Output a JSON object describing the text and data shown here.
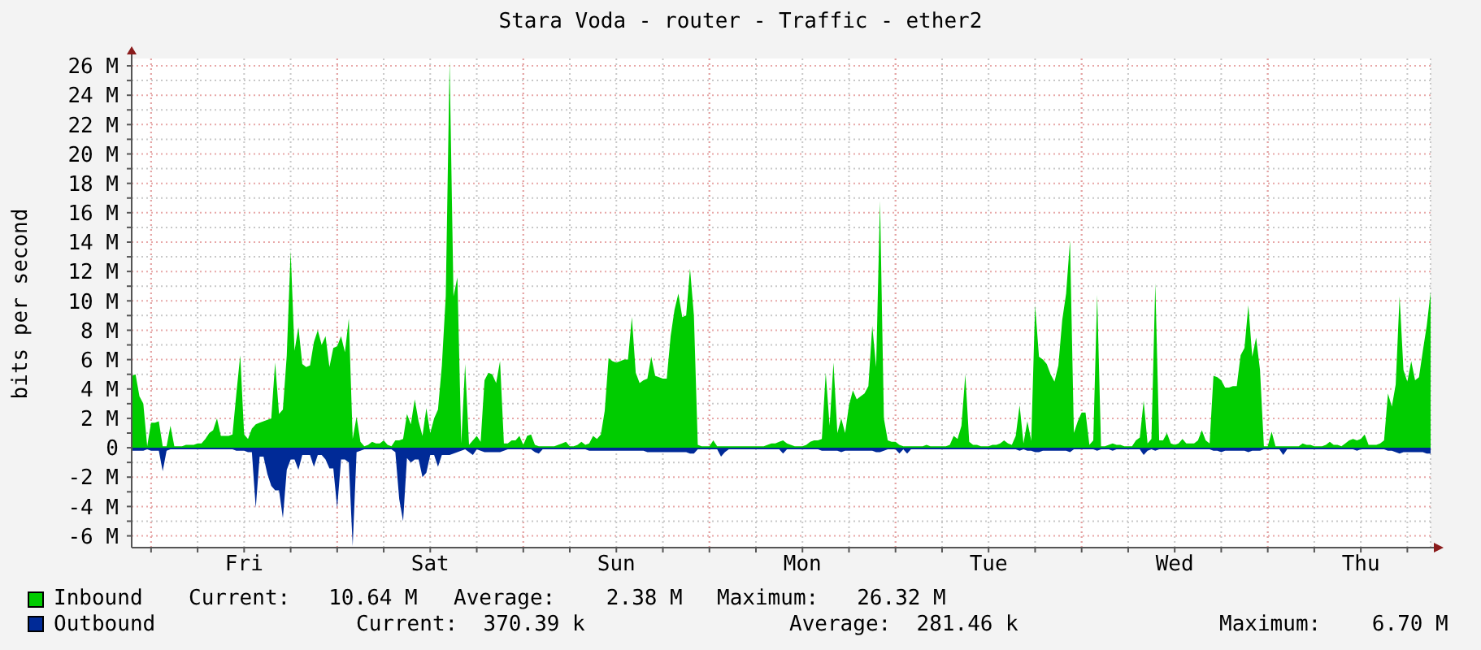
{
  "chart_data": {
    "type": "area",
    "title": "Stara Voda - router - Traffic - ether2",
    "ylabel": "bits per second",
    "categories": [
      null,
      null,
      null,
      null,
      null,
      null,
      null,
      null,
      null,
      null,
      null,
      null,
      null,
      null,
      null,
      null,
      null,
      null,
      null,
      null,
      null,
      null,
      null,
      null,
      null,
      null,
      null,
      null,
      null,
      "Fri",
      null,
      null,
      null,
      null,
      null,
      null,
      null,
      null,
      null,
      null,
      null,
      null,
      null,
      null,
      null,
      null,
      null,
      null,
      null,
      null,
      null,
      null,
      null,
      null,
      null,
      null,
      null,
      null,
      null,
      null,
      null,
      null,
      null,
      null,
      null,
      null,
      null,
      null,
      null,
      null,
      null,
      null,
      null,
      null,
      null,
      null,
      null,
      "Sat",
      null,
      null,
      null,
      null,
      null,
      null,
      null,
      null,
      null,
      null,
      null,
      null,
      null,
      null,
      null,
      null,
      null,
      null,
      null,
      null,
      null,
      null,
      null,
      null,
      null,
      null,
      null,
      null,
      null,
      null,
      null,
      null,
      null,
      null,
      null,
      null,
      null,
      null,
      null,
      null,
      null,
      null,
      null,
      null,
      null,
      null,
      null,
      "Sun",
      null,
      null,
      null,
      null,
      null,
      null,
      null,
      null,
      null,
      null,
      null,
      null,
      null,
      null,
      null,
      null,
      null,
      null,
      null,
      null,
      null,
      null,
      null,
      null,
      null,
      null,
      null,
      null,
      null,
      null,
      null,
      null,
      null,
      null,
      null,
      null,
      null,
      null,
      null,
      null,
      null,
      null,
      null,
      null,
      null,
      null,
      null,
      "Mon",
      null,
      null,
      null,
      null,
      null,
      null,
      null,
      null,
      null,
      null,
      null,
      null,
      null,
      null,
      null,
      null,
      null,
      null,
      null,
      null,
      null,
      null,
      null,
      null,
      null,
      null,
      null,
      null,
      null,
      null,
      null,
      null,
      null,
      null,
      null,
      null,
      null,
      null,
      null,
      null,
      null,
      null,
      null,
      null,
      null,
      null,
      null,
      "Tue",
      null,
      null,
      null,
      null,
      null,
      null,
      null,
      null,
      null,
      null,
      null,
      null,
      null,
      null,
      null,
      null,
      null,
      null,
      null,
      null,
      null,
      null,
      null,
      null,
      null,
      null,
      null,
      null,
      null,
      null,
      null,
      null,
      null,
      null,
      null,
      null,
      null,
      null,
      null,
      null,
      null,
      null,
      null,
      null,
      null,
      null,
      null,
      "Wed",
      null,
      null,
      null,
      null,
      null,
      null,
      null,
      null,
      null,
      null,
      null,
      null,
      null,
      null,
      null,
      null,
      null,
      null,
      null,
      null,
      null,
      null,
      null,
      null,
      null,
      null,
      null,
      null,
      null,
      null,
      null,
      null,
      null,
      null,
      null,
      null,
      null,
      null,
      null,
      null,
      null,
      null,
      null,
      null,
      null,
      null,
      null,
      "Thu",
      null,
      null,
      null,
      null,
      null,
      null,
      null,
      null,
      null,
      null,
      null,
      null,
      null,
      null,
      null,
      null,
      null,
      null
    ],
    "series": [
      {
        "name": "Inbound",
        "color": "#00cc00",
        "values": [
          4.9,
          5.0,
          3.5,
          3.0,
          0.1,
          1.7,
          1.7,
          1.8,
          0.1,
          0.1,
          1.5,
          0.1,
          0.1,
          0.1,
          0.2,
          0.2,
          0.2,
          0.3,
          0.3,
          0.6,
          1.0,
          1.2,
          2.0,
          0.8,
          0.8,
          0.8,
          0.9,
          3.7,
          6.3,
          0.9,
          0.6,
          1.3,
          1.6,
          1.7,
          1.8,
          1.9,
          2.0,
          5.8,
          2.3,
          2.6,
          6.3,
          13.4,
          6.6,
          8.2,
          5.7,
          5.5,
          5.6,
          7.2,
          8.0,
          7.0,
          7.6,
          5.5,
          6.8,
          6.9,
          7.6,
          6.5,
          8.8,
          0.6,
          2.1,
          0.4,
          0.1,
          0.2,
          0.4,
          0.3,
          0.3,
          0.5,
          0.2,
          0.1,
          0.5,
          0.5,
          0.6,
          2.3,
          1.6,
          3.3,
          1.8,
          0.8,
          2.7,
          1.0,
          2.0,
          2.6,
          5.6,
          10.3,
          26.3,
          10.3,
          11.6,
          0.3,
          5.7,
          0.2,
          0.5,
          0.8,
          0.4,
          4.6,
          5.1,
          5.0,
          4.4,
          5.9,
          0.3,
          0.3,
          0.5,
          0.5,
          0.8,
          0.2,
          0.8,
          0.9,
          0.2,
          0.1,
          0.1,
          0.1,
          0.1,
          0.1,
          0.2,
          0.3,
          0.4,
          0.1,
          0.1,
          0.2,
          0.4,
          0.2,
          0.3,
          0.8,
          0.6,
          0.9,
          2.5,
          6.1,
          5.9,
          5.8,
          5.9,
          6.0,
          6.0,
          8.9,
          5.1,
          4.4,
          4.6,
          4.7,
          6.2,
          4.9,
          4.8,
          4.7,
          4.7,
          7.6,
          9.4,
          10.5,
          8.9,
          9.0,
          12.2,
          9.0,
          0.2,
          0.1,
          0.1,
          0.1,
          0.5,
          0.1,
          0.1,
          0.1,
          0.1,
          0.1,
          0.1,
          0.1,
          0.1,
          0.1,
          0.1,
          0.1,
          0.1,
          0.1,
          0.2,
          0.3,
          0.3,
          0.4,
          0.5,
          0.3,
          0.2,
          0.1,
          0.1,
          0.1,
          0.2,
          0.4,
          0.5,
          0.5,
          0.6,
          5.1,
          1.5,
          5.8,
          1.0,
          2.0,
          1.0,
          2.9,
          3.9,
          3.3,
          3.5,
          3.7,
          4.2,
          8.3,
          5.5,
          16.8,
          2.0,
          0.5,
          0.4,
          0.4,
          0.2,
          0.1,
          0.1,
          0.1,
          0.1,
          0.1,
          0.1,
          0.2,
          0.1,
          0.1,
          0.1,
          0.1,
          0.1,
          0.2,
          0.8,
          0.6,
          1.5,
          5.0,
          0.4,
          0.2,
          0.2,
          0.1,
          0.1,
          0.1,
          0.2,
          0.2,
          0.3,
          0.5,
          0.3,
          0.2,
          0.8,
          2.9,
          0.3,
          1.8,
          0.5,
          9.7,
          6.2,
          6.0,
          5.7,
          5.0,
          4.5,
          5.6,
          8.7,
          10.5,
          14.1,
          1.0,
          1.8,
          2.4,
          2.4,
          0.2,
          0.5,
          10.4,
          0.1,
          0.1,
          0.2,
          0.3,
          0.2,
          0.2,
          0.1,
          0.1,
          0.1,
          0.5,
          0.7,
          3.2,
          0.3,
          0.6,
          11.2,
          0.5,
          0.5,
          1.0,
          0.3,
          0.2,
          0.3,
          0.6,
          0.3,
          0.3,
          0.3,
          0.5,
          1.2,
          0.5,
          0.3,
          4.9,
          4.8,
          4.6,
          4.1,
          4.1,
          4.2,
          4.2,
          6.3,
          6.8,
          9.7,
          6.2,
          7.5,
          5.3,
          0.1,
          0.1,
          1.1,
          0.1,
          0.1,
          0.1,
          0.1,
          0.1,
          0.1,
          0.1,
          0.3,
          0.2,
          0.2,
          0.1,
          0.1,
          0.1,
          0.2,
          0.4,
          0.2,
          0.2,
          0.1,
          0.3,
          0.5,
          0.6,
          0.5,
          0.6,
          0.9,
          0.2,
          0.2,
          0.2,
          0.3,
          0.5,
          3.7,
          2.8,
          4.3,
          10.3,
          5.3,
          4.5,
          5.9,
          4.6,
          4.8,
          6.6,
          8.3,
          10.6
        ]
      },
      {
        "name": "Outbound",
        "color": "#002a97",
        "values": [
          -0.2,
          -0.2,
          -0.2,
          -0.2,
          -0.1,
          -0.2,
          -0.2,
          -0.2,
          -1.6,
          -0.2,
          -0.1,
          -0.1,
          -0.1,
          -0.1,
          -0.1,
          -0.1,
          -0.1,
          -0.1,
          -0.1,
          -0.1,
          -0.1,
          -0.1,
          -0.1,
          -0.1,
          -0.1,
          -0.1,
          -0.1,
          -0.2,
          -0.2,
          -0.2,
          -0.3,
          -0.3,
          -4.1,
          -0.6,
          -0.6,
          -1.8,
          -2.6,
          -2.9,
          -2.9,
          -4.8,
          -1.5,
          -0.8,
          -0.8,
          -1.5,
          -0.5,
          -0.5,
          -0.5,
          -1.3,
          -0.5,
          -0.5,
          -0.8,
          -1.4,
          -1.4,
          -4.1,
          -0.8,
          -0.8,
          -1.0,
          -6.7,
          -0.3,
          -0.2,
          -0.1,
          -0.1,
          -0.1,
          -0.1,
          -0.1,
          -0.1,
          -0.1,
          -0.1,
          -0.3,
          -3.5,
          -5.0,
          -0.7,
          -1.0,
          -0.8,
          -0.8,
          -2.0,
          -1.7,
          -0.5,
          -0.5,
          -1.3,
          -0.5,
          -0.5,
          -0.5,
          -0.4,
          -0.3,
          -0.2,
          -0.1,
          -0.3,
          -0.5,
          -0.1,
          -0.2,
          -0.3,
          -0.3,
          -0.3,
          -0.3,
          -0.3,
          -0.2,
          -0.1,
          -0.1,
          -0.1,
          -0.1,
          -0.1,
          -0.1,
          -0.1,
          -0.3,
          -0.4,
          -0.1,
          -0.1,
          -0.1,
          -0.1,
          -0.1,
          -0.1,
          -0.1,
          -0.1,
          -0.1,
          -0.1,
          -0.1,
          -0.1,
          -0.2,
          -0.2,
          -0.2,
          -0.2,
          -0.2,
          -0.2,
          -0.2,
          -0.2,
          -0.2,
          -0.2,
          -0.2,
          -0.2,
          -0.2,
          -0.2,
          -0.2,
          -0.3,
          -0.3,
          -0.3,
          -0.3,
          -0.3,
          -0.3,
          -0.3,
          -0.3,
          -0.3,
          -0.3,
          -0.3,
          -0.4,
          -0.4,
          -0.1,
          -0.1,
          -0.1,
          -0.1,
          -0.1,
          -0.1,
          -0.6,
          -0.3,
          -0.1,
          -0.1,
          -0.1,
          -0.1,
          -0.1,
          -0.1,
          -0.1,
          -0.1,
          -0.1,
          -0.1,
          -0.1,
          -0.1,
          -0.1,
          -0.1,
          -0.4,
          -0.1,
          -0.1,
          -0.1,
          -0.1,
          -0.1,
          -0.1,
          -0.1,
          -0.1,
          -0.1,
          -0.2,
          -0.2,
          -0.2,
          -0.2,
          -0.2,
          -0.3,
          -0.2,
          -0.2,
          -0.2,
          -0.2,
          -0.2,
          -0.2,
          -0.2,
          -0.2,
          -0.3,
          -0.3,
          -0.2,
          -0.1,
          -0.1,
          -0.1,
          -0.4,
          -0.1,
          -0.4,
          -0.1,
          -0.1,
          -0.1,
          -0.1,
          -0.1,
          -0.1,
          -0.1,
          -0.1,
          -0.1,
          -0.1,
          -0.1,
          -0.1,
          -0.1,
          -0.1,
          -0.1,
          -0.1,
          -0.1,
          -0.1,
          -0.1,
          -0.1,
          -0.1,
          -0.1,
          -0.1,
          -0.1,
          -0.1,
          -0.1,
          -0.1,
          -0.1,
          -0.2,
          -0.1,
          -0.2,
          -0.2,
          -0.3,
          -0.3,
          -0.2,
          -0.2,
          -0.2,
          -0.2,
          -0.2,
          -0.2,
          -0.2,
          -0.3,
          -0.1,
          -0.1,
          -0.1,
          -0.1,
          -0.1,
          -0.1,
          -0.2,
          -0.1,
          -0.1,
          -0.1,
          -0.2,
          -0.1,
          -0.1,
          -0.1,
          -0.1,
          -0.1,
          -0.1,
          -0.1,
          -0.5,
          -0.2,
          -0.1,
          -0.2,
          -0.1,
          -0.1,
          -0.1,
          -0.1,
          -0.1,
          -0.1,
          -0.1,
          -0.1,
          -0.1,
          -0.1,
          -0.1,
          -0.1,
          -0.1,
          -0.1,
          -0.2,
          -0.2,
          -0.3,
          -0.2,
          -0.2,
          -0.2,
          -0.2,
          -0.2,
          -0.2,
          -0.3,
          -0.2,
          -0.2,
          -0.2,
          -0.1,
          -0.1,
          -0.1,
          -0.1,
          -0.1,
          -0.5,
          -0.1,
          -0.1,
          -0.1,
          -0.1,
          -0.1,
          -0.1,
          -0.1,
          -0.1,
          -0.1,
          -0.1,
          -0.1,
          -0.1,
          -0.1,
          -0.1,
          -0.1,
          -0.1,
          -0.1,
          -0.1,
          -0.2,
          -0.1,
          -0.1,
          -0.1,
          -0.1,
          -0.1,
          -0.1,
          -0.1,
          -0.2,
          -0.2,
          -0.3,
          -0.4,
          -0.3,
          -0.3,
          -0.3,
          -0.3,
          -0.3,
          -0.3,
          -0.4,
          -0.4
        ]
      }
    ],
    "ylim": [
      -6.8,
      26.5
    ],
    "yticks": [
      {
        "value": -6,
        "label": "-6 M"
      },
      {
        "value": -5,
        "label": null
      },
      {
        "value": -4,
        "label": "-4 M"
      },
      {
        "value": -3,
        "label": null
      },
      {
        "value": -2,
        "label": "-2 M"
      },
      {
        "value": -1,
        "label": null
      },
      0,
      {
        "value": 1,
        "label": null
      },
      {
        "value": 2,
        "label": "2 M"
      },
      {
        "value": 3,
        "label": null
      },
      {
        "value": 4,
        "label": "4 M"
      },
      {
        "value": 5,
        "label": null
      },
      {
        "value": 6,
        "label": "6 M"
      },
      {
        "value": 7,
        "label": null
      },
      {
        "value": 8,
        "label": "8 M"
      },
      {
        "value": 9,
        "label": null
      },
      {
        "value": 10,
        "label": "10 M"
      },
      {
        "value": 11,
        "label": null
      },
      {
        "value": 12,
        "label": "12 M"
      },
      {
        "value": 13,
        "label": null
      },
      {
        "value": 14,
        "label": "14 M"
      },
      {
        "value": 15,
        "label": null
      },
      {
        "value": 16,
        "label": "16 M"
      },
      {
        "value": 17,
        "label": null
      },
      {
        "value": 18,
        "label": "18 M"
      },
      {
        "value": 19,
        "label": null
      },
      {
        "value": 20,
        "label": "20 M"
      },
      {
        "value": 21,
        "label": null
      },
      {
        "value": 22,
        "label": "22 M"
      },
      {
        "value": 23,
        "label": null
      },
      {
        "value": 24,
        "label": "24 M"
      },
      {
        "value": 25,
        "label": null
      },
      {
        "value": 26,
        "label": "26 M"
      }
    ],
    "grid": true,
    "legend": "bottom",
    "annotations": [
      "Current:   10.64 M",
      "Average:    2.38 M",
      "Maximum:   26.32 M",
      "Current:  370.39 k",
      "Average:  281.46 k",
      "Maximum:    6.70 M"
    ]
  }
}
